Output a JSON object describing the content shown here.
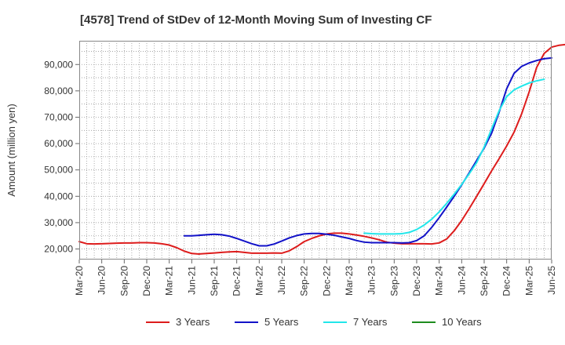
{
  "chart_data": {
    "type": "line",
    "title": "[4578]  Trend of StDev of 12-Month Moving Sum of Investing CF",
    "xlabel": "",
    "ylabel": "Amount (million yen)",
    "ylim": [
      16000,
      99000
    ],
    "yticks": [
      20000,
      30000,
      40000,
      50000,
      60000,
      70000,
      80000,
      90000
    ],
    "ytick_labels": [
      "20,000",
      "30,000",
      "40,000",
      "50,000",
      "60,000",
      "70,000",
      "80,000",
      "90,000"
    ],
    "xtick_labels": [
      "Mar-20",
      "Jun-20",
      "Sep-20",
      "Dec-20",
      "Mar-21",
      "Jun-21",
      "Sep-21",
      "Dec-21",
      "Mar-22",
      "Jun-22",
      "Sep-22",
      "Dec-22",
      "Mar-23",
      "Jun-23",
      "Sep-23",
      "Dec-23",
      "Mar-24",
      "Jun-24",
      "Sep-24",
      "Dec-24",
      "Mar-25",
      "Jun-25"
    ],
    "grid": true,
    "legend_position": "bottom",
    "series": [
      {
        "name": "3 Years",
        "color": "#dd1c1c",
        "start": "2020-03",
        "values": [
          22800,
          22000,
          21900,
          22000,
          22100,
          22200,
          22300,
          22300,
          22400,
          22400,
          22300,
          22000,
          21500,
          20500,
          19200,
          18300,
          18100,
          18300,
          18500,
          18700,
          18900,
          19000,
          18700,
          18400,
          18400,
          18400,
          18500,
          18400,
          19300,
          20900,
          22800,
          24000,
          25000,
          25700,
          26000,
          26000,
          25700,
          25300,
          24800,
          24200,
          23500,
          22600,
          22200,
          22000,
          22000,
          22000,
          22000,
          21900,
          22300,
          23800,
          26900,
          30800,
          35300,
          40000,
          44800,
          49700,
          54300,
          59100,
          64400,
          71300,
          79600,
          88900,
          94200,
          96600,
          97300,
          97600,
          97700,
          97700
        ]
      },
      {
        "name": "5 Years",
        "color": "#1212c8",
        "start": "2021-05",
        "values": [
          25000,
          25000,
          25200,
          25400,
          25600,
          25400,
          24900,
          24000,
          23000,
          22000,
          21200,
          21200,
          21900,
          23000,
          24200,
          25100,
          25700,
          25900,
          25900,
          25600,
          25200,
          24600,
          24000,
          23200,
          22600,
          22400,
          22400,
          22400,
          22400,
          22300,
          22400,
          23200,
          25000,
          28200,
          31900,
          35900,
          40000,
          44300,
          48900,
          53600,
          58300,
          64000,
          72000,
          80800,
          86700,
          89300,
          90600,
          91500,
          92200,
          92500
        ]
      },
      {
        "name": "7 Years",
        "color": "#22e6ea",
        "start": "2023-05",
        "values": [
          26000,
          25800,
          25700,
          25700,
          25700,
          25800,
          26300,
          27400,
          29100,
          31300,
          34100,
          37300,
          40800,
          44500,
          48500,
          52800,
          58700,
          65600,
          72500,
          77800,
          80400,
          81800,
          83000,
          83800,
          84400
        ]
      },
      {
        "name": "10 Years",
        "color": "#1e8c1e",
        "start": "2025-03",
        "values": []
      }
    ]
  }
}
